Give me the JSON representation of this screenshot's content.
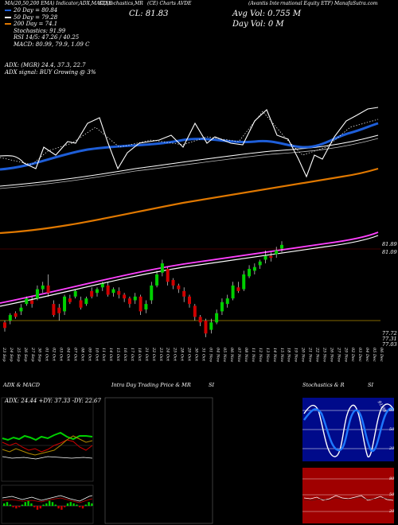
{
  "header": {
    "ticker_line_left": "MA(20,50,200 EMA) Indicator,ADX,MACD,E",
    "ticker_line_mid": "SI,Stochastics,MR",
    "ticker_line_mid2": "(CE) Charts AVDE",
    "ticker_line_right": "(Avantis Inte",
    "ticker_line_right2": "rnational Equity ETF) ManafaSutra.com",
    "close_label": "CL: 81.83",
    "avg_vol_label": "Avg Vol: 0.755 M",
    "day_vol_label": "Day Vol: 0   M"
  },
  "legend": {
    "l1": "20  Day = 80.84",
    "l2": "50  Day = 79.28",
    "l3": "200  Day = 74.1",
    "l4": "Stochastics: 91.99",
    "l5": "RSI 14/5: 47.26 / 40.25",
    "l6": "MACD: 80.99, 79.9, 1.09 C"
  },
  "adx_info": {
    "l1": "ADX:                          (MGR) 24.4, 37.3, 22.7",
    "l2": "ADX  signal:                         BUY Growing @ 3%"
  },
  "price_axis": {
    "top": "81.89",
    "mid": "81.09",
    "low1": "77.72",
    "low2": "77.31",
    "low3": "77.03"
  },
  "dates": [
    "23 Sep",
    "24 Sep",
    "25 Sep",
    "26 Sep",
    "27 Sep",
    "30 Sep",
    "01 Oct",
    "02 Oct",
    "03 Oct",
    "04 Oct",
    "07 Oct",
    "08 Oct",
    "09 Oct",
    "10 Oct",
    "11 Oct",
    "14 Oct",
    "15 Oct",
    "16 Oct",
    "17 Oct",
    "18 Oct",
    "21 Oct",
    "22 Oct",
    "23 Oct",
    "24 Oct",
    "25 Oct",
    "28 Oct",
    "29 Oct",
    "30 Oct",
    "31 Oct",
    "01 Nov",
    "04 Nov",
    "05 Nov",
    "06 Nov",
    "07 Nov",
    "08 Nov",
    "11 Nov",
    "12 Nov",
    "13 Nov",
    "14 Nov",
    "15 Nov",
    "18 Nov",
    "19 Nov",
    "20 Nov",
    "21 Nov",
    "22 Nov",
    "25 Nov",
    "26 Nov",
    "27 Nov",
    "29 Nov",
    "02 Dec",
    "03 Dec",
    "04 Dec",
    "05 Dec",
    "06 Dec"
  ],
  "panels": {
    "adx_macd_title": "ADX  & MACD",
    "adx_readout": "ADX: 24.44  +DY: 37.33 -DY: 22.67",
    "intraday_title": "Intra  Day Trading Price  & MR",
    "intraday_si": "SI",
    "stoch_title": "Stochastics & R",
    "stoch_si": "SI",
    "stoch_value": "91.99",
    "stoch_ticks": [
      "80",
      "50",
      "20"
    ],
    "rsi_ticks": [
      "80",
      "50",
      "20"
    ]
  },
  "colors": {
    "up": "#00d000",
    "down": "#d00000",
    "ema20": "#1e5ed8",
    "ema50": "#ffffff",
    "ema200": "#e07800",
    "bands": "#ff40ff",
    "gold": "#b08a00",
    "stoch_bg": "#000a8a",
    "rsi_bg": "#a00000"
  },
  "chart_data": [
    {
      "type": "line",
      "title": "",
      "note": "Upper panel: price with moving averages (levels read by eye)",
      "x": [
        "23 Sep",
        "01 Oct",
        "10 Oct",
        "21 Oct",
        "30 Oct",
        "08 Nov",
        "18 Nov",
        "27 Nov",
        "06 Dec"
      ],
      "series": [
        {
          "name": "20  Day",
          "values": [
            79.6,
            79.7,
            79.5,
            79.9,
            80.3,
            80.0,
            79.6,
            80.4,
            80.84
          ]
        },
        {
          "name": "50  Day",
          "values": [
            78.9,
            79.0,
            79.1,
            79.2,
            79.3,
            79.3,
            79.2,
            79.25,
            79.28
          ]
        },
        {
          "name": "200  Day",
          "values": [
            72.5,
            72.8,
            73.0,
            73.3,
            73.5,
            73.7,
            73.9,
            74.0,
            74.1
          ]
        }
      ]
    },
    {
      "type": "bar",
      "title": "",
      "note": "Candlestick price panel (approximate closes)",
      "categories": [
        "23 Sep",
        "27 Sep",
        "03 Oct",
        "09 Oct",
        "15 Oct",
        "21 Oct",
        "25 Oct",
        "31 Oct",
        "06 Nov",
        "12 Nov",
        "18 Nov",
        "22 Nov",
        "27 Nov",
        "03 Dec",
        "06 Dec"
      ],
      "values": [
        78.3,
        78.8,
        79.6,
        79.1,
        78.9,
        79.3,
        79.7,
        78.9,
        80.6,
        79.9,
        78.2,
        79.0,
        80.6,
        81.3,
        81.83
      ],
      "ylim": [
        77.0,
        82.0
      ]
    },
    {
      "type": "line",
      "title": "",
      "note": "Stochastics panel",
      "series": [
        {
          "name": "Stochastics",
          "values": [
            88,
            35,
            20,
            70,
            90,
            40,
            15,
            60,
            91.99
          ]
        }
      ],
      "ylim": [
        0,
        100
      ]
    }
  ]
}
